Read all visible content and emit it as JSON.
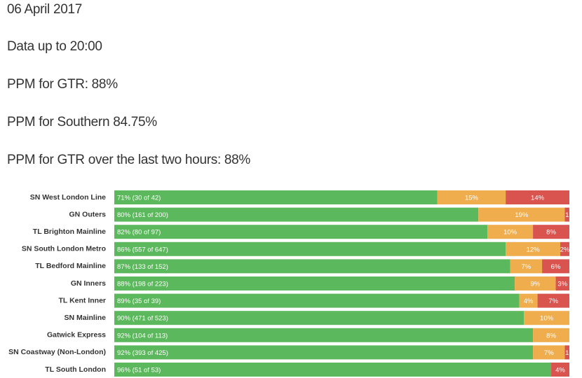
{
  "header": {
    "lines": [
      "06 April 2017",
      "Data up to 20:00",
      "PPM for GTR: 88%",
      "PPM for Southern 84.75%",
      "PPM for GTR over the last two hours: 88%"
    ]
  },
  "chart_data": {
    "type": "stacked-bar-horizontal",
    "categories": [
      "SN West London Line",
      "GN Outers",
      "TL Brighton Mainline",
      "SN South London Metro",
      "TL Bedford Mainline",
      "GN Inners",
      "TL Kent Inner",
      "SN Mainline",
      "Gatwick Express",
      "SN Coastway (Non-London)",
      "TL South London"
    ],
    "xlim": [
      0,
      100
    ],
    "series": [
      {
        "color": "#5cb85c",
        "values": [
          71,
          80,
          82,
          86,
          87,
          88,
          89,
          90,
          92,
          92,
          96
        ],
        "value_labels": [
          "71% (30 of 42)",
          "80% (161 of 200)",
          "82% (80 of 97)",
          "86% (557 of 647)",
          "87% (133 of 152)",
          "88% (198 of 223)",
          "89% (35 of 39)",
          "90% (471 of 523)",
          "92% (104 of 113)",
          "92% (393 of 425)",
          "96% (51 of 53)"
        ]
      },
      {
        "color": "#f0ad4e",
        "values": [
          15,
          19,
          10,
          12,
          7,
          9,
          4,
          10,
          8,
          7,
          0
        ],
        "value_labels": [
          "15%",
          "19%",
          "10%",
          "12%",
          "7%",
          "9%",
          "4%",
          "10%",
          "8%",
          "7%",
          null
        ]
      },
      {
        "color": "#d9534f",
        "values": [
          14,
          1,
          8,
          2,
          6,
          3,
          7,
          0,
          0,
          1,
          4
        ],
        "value_labels": [
          "14%",
          "1",
          "8%",
          "2%",
          "6%",
          "3%",
          "7%",
          null,
          null,
          "1",
          "4%"
        ]
      }
    ]
  }
}
